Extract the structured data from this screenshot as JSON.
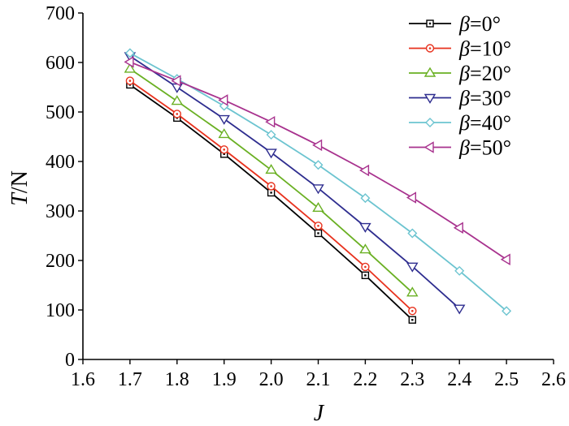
{
  "chart_data": {
    "type": "line",
    "title": "",
    "xlabel": "J",
    "ylabel_italic": "T",
    "ylabel_unit": "/N",
    "xlim": [
      1.6,
      2.6
    ],
    "ylim": [
      0,
      700
    ],
    "xticks": [
      "1.6",
      "1.7",
      "1.8",
      "1.9",
      "2.0",
      "2.1",
      "2.2",
      "2.3",
      "2.4",
      "2.5",
      "2.6"
    ],
    "yticks": [
      "0",
      "100",
      "200",
      "300",
      "400",
      "500",
      "600",
      "700"
    ],
    "grid": false,
    "legend_position": "top-right",
    "series": [
      {
        "name": "β=0°",
        "greek": "β",
        "value_label": "=0°",
        "color": "#000000",
        "marker": "square",
        "x": [
          1.7,
          1.8,
          1.9,
          2.0,
          2.1,
          2.2,
          2.3
        ],
        "y": [
          555,
          488,
          415,
          337,
          255,
          170,
          80
        ]
      },
      {
        "name": "β=10°",
        "greek": "β",
        "value_label": "=10°",
        "color": "#e8321e",
        "marker": "circle",
        "x": [
          1.7,
          1.8,
          1.9,
          2.0,
          2.1,
          2.2,
          2.3
        ],
        "y": [
          563,
          496,
          424,
          350,
          270,
          187,
          98
        ]
      },
      {
        "name": "β=20°",
        "greek": "β",
        "value_label": "=20°",
        "color": "#6ab023",
        "marker": "triangle-up",
        "x": [
          1.7,
          1.8,
          1.9,
          2.0,
          2.1,
          2.2,
          2.3
        ],
        "y": [
          587,
          522,
          455,
          383,
          306,
          222,
          135
        ]
      },
      {
        "name": "β=30°",
        "greek": "β",
        "value_label": "=30°",
        "color": "#2e2d8f",
        "marker": "triangle-down",
        "x": [
          1.7,
          1.8,
          1.9,
          2.0,
          2.1,
          2.2,
          2.3,
          2.4
        ],
        "y": [
          613,
          550,
          486,
          418,
          346,
          268,
          188,
          103
        ]
      },
      {
        "name": "β=40°",
        "greek": "β",
        "value_label": "=40°",
        "color": "#6cc4d0",
        "marker": "diamond",
        "x": [
          1.7,
          1.8,
          1.9,
          2.0,
          2.1,
          2.2,
          2.3,
          2.4,
          2.5
        ],
        "y": [
          619,
          567,
          512,
          454,
          393,
          326,
          255,
          179,
          98
        ]
      },
      {
        "name": "β=50°",
        "greek": "β",
        "value_label": "=50°",
        "color": "#a8328e",
        "marker": "triangle-left",
        "x": [
          1.7,
          1.8,
          1.9,
          2.0,
          2.1,
          2.2,
          2.3,
          2.4,
          2.5
        ],
        "y": [
          601,
          563,
          524,
          480,
          433,
          382,
          327,
          266,
          202
        ]
      }
    ]
  }
}
